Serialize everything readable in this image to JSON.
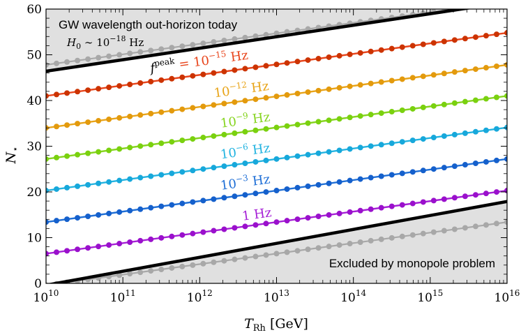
{
  "chart_data": {
    "type": "line",
    "xlabel": "T_Rh [GeV]",
    "xlabel_main": "T",
    "xlabel_sub": "Rh",
    "xlabel_unit": "[GeV]",
    "ylabel": "N_*",
    "ylabel_main": "N",
    "ylabel_sub": "⋆",
    "xscale": "log",
    "xlim": [
      10000000000.0,
      1e+16
    ],
    "ylim": [
      0,
      60
    ],
    "x_ticks": [
      {
        "exp": "10",
        "label": "10"
      },
      {
        "exp": "11",
        "label": "10"
      },
      {
        "exp": "12",
        "label": "10"
      },
      {
        "exp": "13",
        "label": "10"
      },
      {
        "exp": "14",
        "label": "10"
      },
      {
        "exp": "15",
        "label": "10"
      },
      {
        "exp": "16",
        "label": "10"
      }
    ],
    "y_ticks": [
      "0",
      "10",
      "20",
      "30",
      "40",
      "50",
      "60"
    ],
    "grid": false,
    "series": [
      {
        "name": "f^peak = 10^-15 Hz",
        "label_prefix": "f",
        "label_sup": "peak",
        "label_mid": " = 10",
        "label_exp": "−15",
        "label_unit": " Hz",
        "color": "#e8451c",
        "dot_color": "#cc3300",
        "y_start": 41.0,
        "y_end": 54.8,
        "label_x_log": 12.0,
        "label_y": 47.6
      },
      {
        "name": "10^-12 Hz",
        "label_mid": "10",
        "label_exp": "−12",
        "label_unit": " Hz",
        "color": "#e8a418",
        "dot_color": "#e39a0d",
        "y_start": 34.0,
        "y_end": 47.8,
        "label_x_log": 12.55,
        "label_y": 41.5
      },
      {
        "name": "10^-9 Hz",
        "label_mid": "10",
        "label_exp": "−9",
        "label_unit": " Hz",
        "color": "#86d41f",
        "dot_color": "#7ad10f",
        "y_start": 27.2,
        "y_end": 41.0,
        "label_x_log": 12.6,
        "label_y": 34.8
      },
      {
        "name": "10^-6 Hz",
        "label_mid": "10",
        "label_exp": "−6",
        "label_unit": " Hz",
        "color": "#22b3e0",
        "dot_color": "#17a8db",
        "y_start": 20.3,
        "y_end": 34.1,
        "label_x_log": 12.6,
        "label_y": 28.0
      },
      {
        "name": "10^-3 Hz",
        "label_mid": "10",
        "label_exp": "−3",
        "label_unit": " Hz",
        "color": "#1f6fd6",
        "dot_color": "#1560cc",
        "y_start": 13.4,
        "y_end": 27.2,
        "label_x_log": 12.6,
        "label_y": 21.2
      },
      {
        "name": "1 Hz",
        "label_mid": "1",
        "label_exp": "",
        "label_unit": " Hz",
        "color": "#a51fd6",
        "dot_color": "#9a10cc",
        "y_start": 6.5,
        "y_end": 20.3,
        "label_x_log": 12.75,
        "label_y": 14.2
      }
    ],
    "boundaries": [
      {
        "name": "upper-bound",
        "color": "#000000",
        "y_start": 46.4,
        "y_end": 61.5
      },
      {
        "name": "lower-bound",
        "color": "#000000",
        "y_start": -0.4,
        "y_end": 17.9
      }
    ],
    "gray_series": [
      {
        "name": "upper-gray",
        "color": "#a8a8a8",
        "y_start": 47.8,
        "y_end": 61.6
      },
      {
        "name": "lower-gray",
        "color": "#a8a8a8",
        "y_start": -0.4,
        "y_end": 13.4
      }
    ],
    "regions": {
      "upper_title": "GW wavelength out-horizon today",
      "upper_sub_main": "H",
      "upper_sub_index": "0",
      "upper_sub_rel": " ∼ 10",
      "upper_sub_exp": "−18",
      "upper_sub_unit": " Hz",
      "lower_title": "Excluded by monopole problem",
      "fill": "#e0e0e0"
    }
  }
}
